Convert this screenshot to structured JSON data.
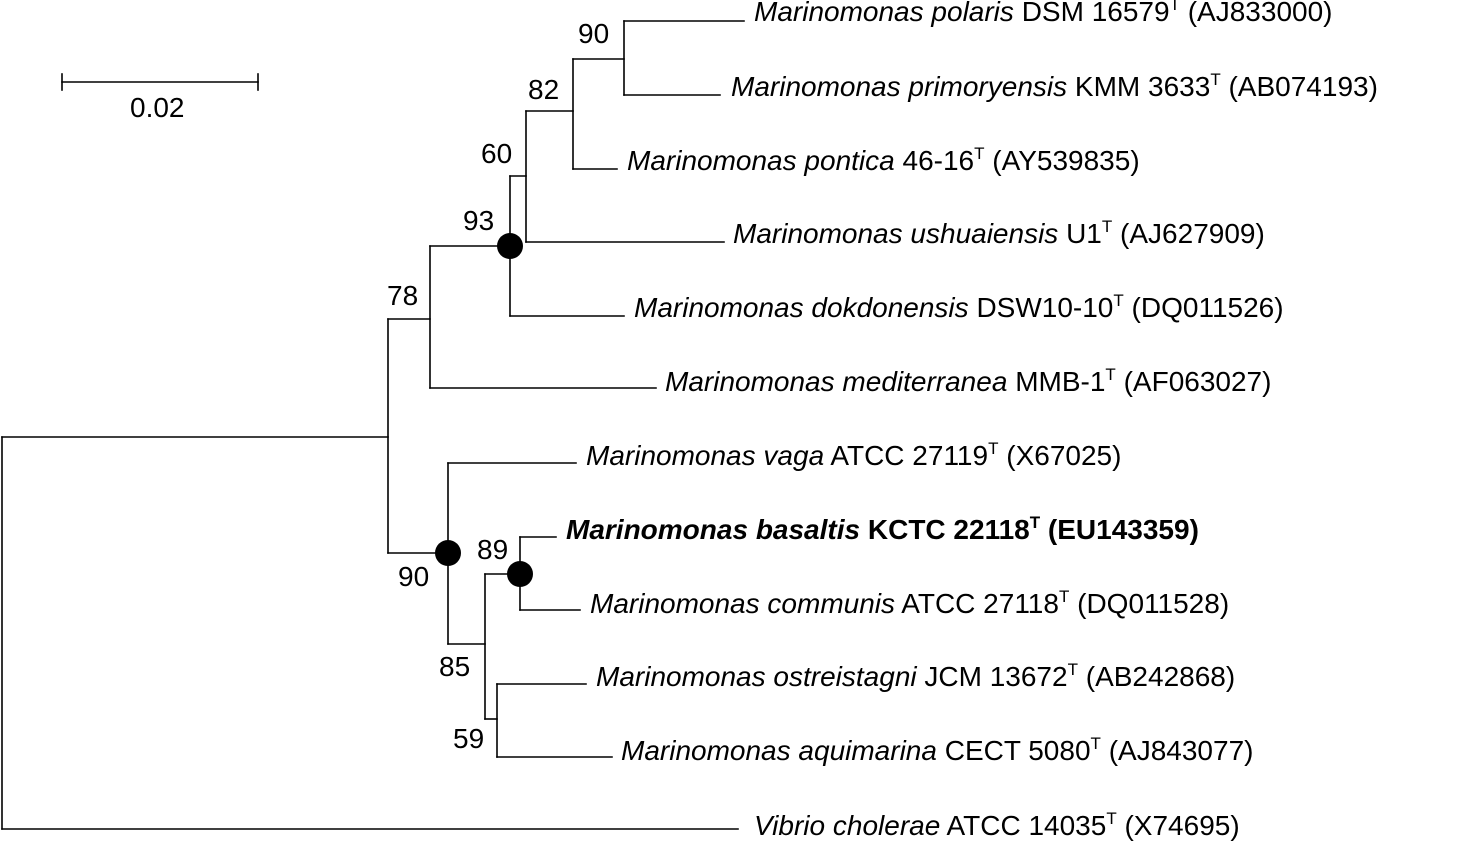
{
  "scale_bar": {
    "value": "0.02"
  },
  "taxa": [
    {
      "id": "polaris",
      "genus": "Marinomonas",
      "species": "polaris",
      "strain": "DSM 16579",
      "type_mark": "T",
      "accession": "(AJ833000)",
      "highlight": false
    },
    {
      "id": "primoryensis",
      "genus": "Marinomonas",
      "species": "primoryensis",
      "strain": "KMM 3633",
      "type_mark": "T",
      "accession": "(AB074193)",
      "highlight": false
    },
    {
      "id": "pontica",
      "genus": "Marinomonas",
      "species": "pontica",
      "strain": "46-16",
      "type_mark": "T",
      "accession": "(AY539835)",
      "highlight": false
    },
    {
      "id": "ushuaiensis",
      "genus": "Marinomonas",
      "species": "ushuaiensis",
      "strain": "U1",
      "type_mark": "T",
      "accession": "(AJ627909)",
      "highlight": false
    },
    {
      "id": "dokdonensis",
      "genus": "Marinomonas",
      "species": "dokdonensis",
      "strain": "DSW10-10",
      "type_mark": "T",
      "accession": "(DQ011526)",
      "highlight": false
    },
    {
      "id": "mediterranea",
      "genus": "Marinomonas",
      "species": "mediterranea",
      "strain": "MMB-1",
      "type_mark": "T",
      "accession": "(AF063027)",
      "highlight": false
    },
    {
      "id": "vaga",
      "genus": "Marinomonas",
      "species": "vaga",
      "strain": "ATCC 27119",
      "type_mark": "T",
      "accession": "(X67025)",
      "highlight": false
    },
    {
      "id": "basaltis",
      "genus": "Marinomonas",
      "species": "basaltis",
      "strain": "KCTC 22118",
      "type_mark": "T",
      "accession": "(EU143359)",
      "highlight": true
    },
    {
      "id": "communis",
      "genus": "Marinomonas",
      "species": "communis",
      "strain": "ATCC 27118",
      "type_mark": "T",
      "accession": "(DQ011528)",
      "highlight": false
    },
    {
      "id": "ostreistagni",
      "genus": "Marinomonas",
      "species": "ostreistagni",
      "strain": "JCM 13672",
      "type_mark": "T",
      "accession": "(AB242868)",
      "highlight": false
    },
    {
      "id": "aquimarina",
      "genus": "Marinomonas",
      "species": "aquimarina",
      "strain": "CECT 5080",
      "type_mark": "T",
      "accession": "(AJ843077)",
      "highlight": false
    },
    {
      "id": "cholerae",
      "genus": "Vibrio",
      "species": "cholerae",
      "strain": "ATCC 14035",
      "type_mark": "T",
      "accession": "(X74695)",
      "highlight": false
    }
  ],
  "bootstrap": {
    "polaris_primoryensis": "90",
    "pontica_clade": "82",
    "ushuaiensis_clade": "60",
    "dokdonensis_clade": "93",
    "mediterranea_clade": "78",
    "vaga_clade": "90",
    "basaltis_communis": "89",
    "communis_ostreistagni_clade": "85",
    "ostreistagni_aquimarina": "59"
  }
}
